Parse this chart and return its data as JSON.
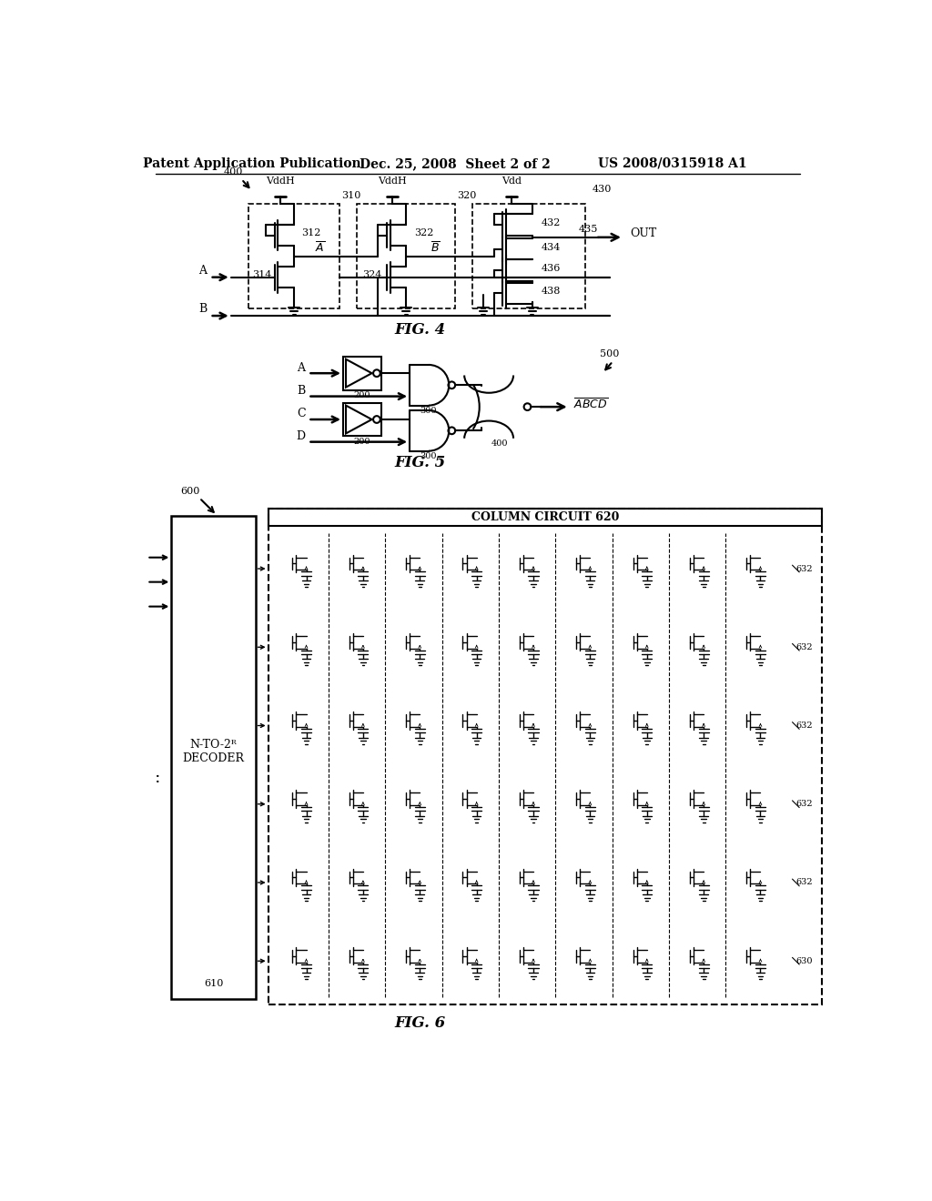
{
  "header_left": "Patent Application Publication",
  "header_mid": "Dec. 25, 2008  Sheet 2 of 2",
  "header_right": "US 2008/0315918 A1",
  "fig4_label": "FIG. 4",
  "fig5_label": "FIG. 5",
  "fig6_label": "FIG. 6",
  "bg_color": "#ffffff",
  "line_color": "#000000"
}
